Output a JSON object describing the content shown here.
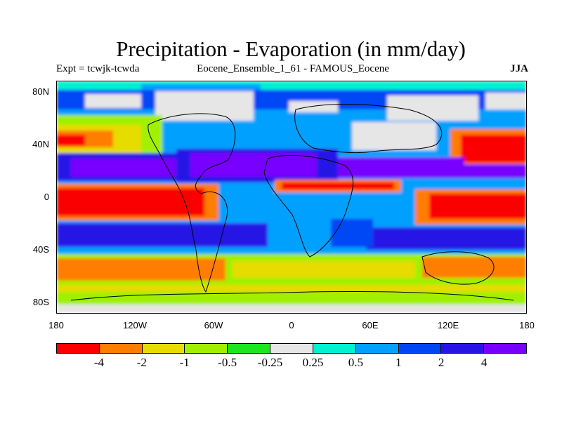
{
  "title": "Precipitation - Evaporation (in mm/day)",
  "subtitle_left": "Expt = tcwjk-tcwda",
  "subtitle_center": "Eocene_Ensemble_1_61 - FAMOUS_Eocene",
  "subtitle_right": "JJA",
  "map": {
    "projection": "cylindrical equidistant",
    "lon_range": [
      -180,
      180
    ],
    "lat_range": [
      -90,
      90
    ],
    "lat_labels": [
      "80N",
      "40N",
      "0",
      "40S",
      "80S"
    ],
    "lon_labels": [
      "180",
      "120W",
      "60W",
      "0",
      "60E",
      "120E",
      "180"
    ]
  },
  "colorbar": {
    "colors": [
      "#fa0000",
      "#ff7d00",
      "#e6dc00",
      "#a0f000",
      "#1ee61e",
      "#e6e6e6",
      "#00f0d2",
      "#00a0ff",
      "#0046f5",
      "#2814e6",
      "#7800ff"
    ],
    "labels": [
      "-4",
      "-2",
      "-1",
      "-0.5",
      "-0.25",
      "0.25",
      "0.5",
      "1",
      "2",
      "4"
    ]
  }
}
